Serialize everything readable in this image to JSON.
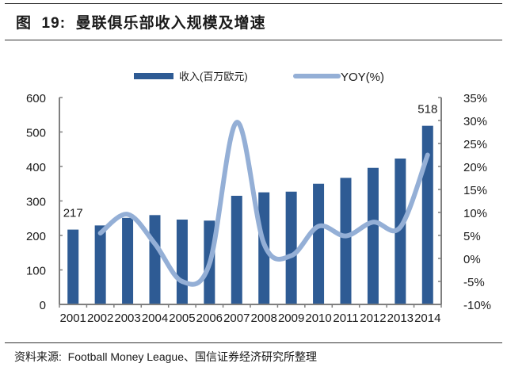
{
  "header": {
    "title": "图  19:  曼联俱乐部收入规模及增速"
  },
  "footer": {
    "source": "资料来源:  Football Money League、国信证券经济研究所整理"
  },
  "colors": {
    "bar": "#2e5b94",
    "line": "#94afd6",
    "axis": "#7f7f7f",
    "text": "#1a1a1a"
  },
  "chart_data": {
    "type": "bar+line",
    "title": "曼联俱乐部收入规模及增速",
    "categories": [
      "2001",
      "2002",
      "2003",
      "2004",
      "2005",
      "2006",
      "2007",
      "2008",
      "2009",
      "2010",
      "2011",
      "2012",
      "2013",
      "2014"
    ],
    "series": [
      {
        "name": "收入(百万欧元)",
        "type": "bar",
        "axis": "left",
        "values": [
          217,
          229,
          251,
          259,
          246,
          243,
          315,
          325,
          327,
          350,
          367,
          396,
          423,
          518
        ]
      },
      {
        "name": "YOY(%)",
        "type": "line",
        "axis": "right",
        "values": [
          null,
          5.5,
          9.6,
          3.2,
          -5.0,
          -1.2,
          29.6,
          3.2,
          0.6,
          7.0,
          4.9,
          7.9,
          6.8,
          22.5
        ]
      }
    ],
    "data_labels": [
      {
        "category": "2001",
        "value": "217"
      },
      {
        "category": "2014",
        "value": "518"
      }
    ],
    "left_axis": {
      "ylim": [
        0,
        600
      ],
      "ticks": [
        "0",
        "100",
        "200",
        "300",
        "400",
        "500",
        "600"
      ]
    },
    "right_axis": {
      "ylim": [
        -10,
        35
      ],
      "ticks": [
        "-10%",
        "-5%",
        "0%",
        "5%",
        "10%",
        "15%",
        "20%",
        "25%",
        "30%",
        "35%"
      ]
    },
    "legend": {
      "position": "top",
      "entries": [
        "收入(百万欧元)",
        "YOY(%)"
      ]
    },
    "grid": false,
    "xlabel": "",
    "ylabel": ""
  }
}
